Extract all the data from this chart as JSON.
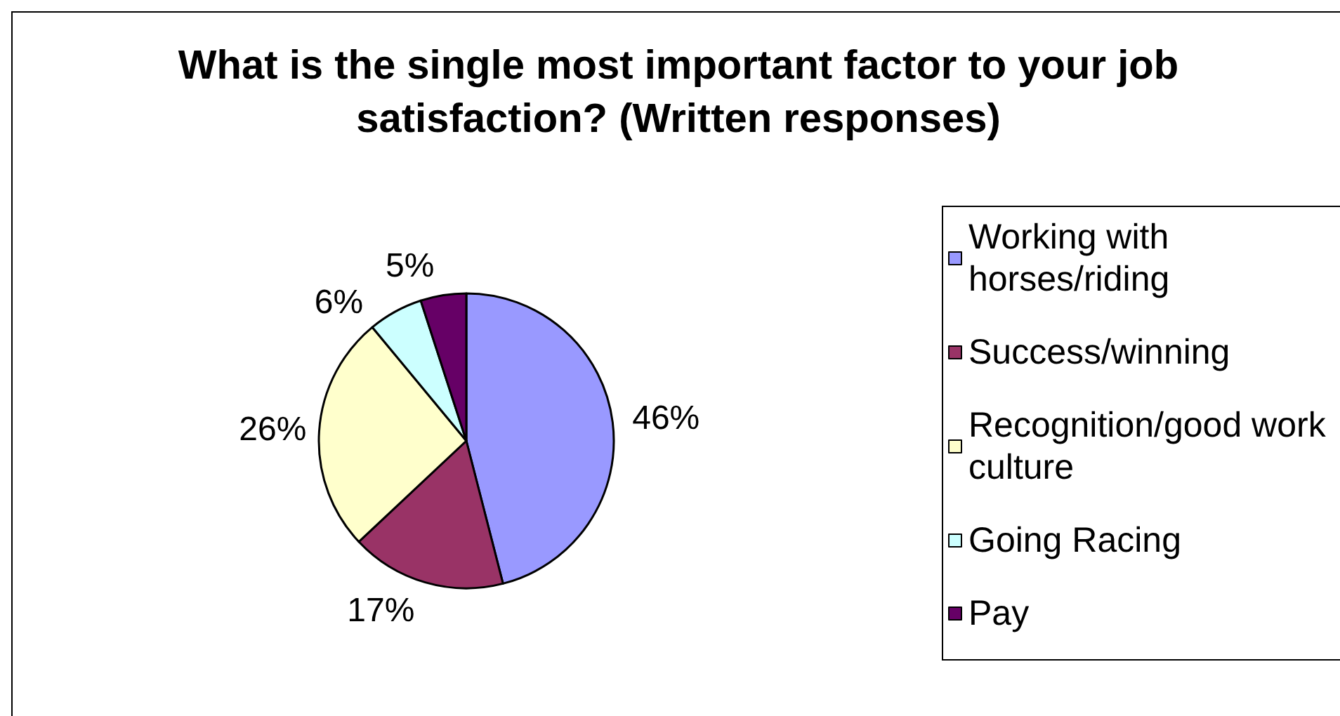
{
  "chart_data": {
    "type": "pie",
    "title": "What is the single most important factor to your job satisfaction? (Written responses)",
    "categories": [
      "Working with horses/riding",
      "Success/winning",
      "Recognition/good work culture",
      "Going Racing",
      "Pay"
    ],
    "values": [
      46,
      17,
      26,
      6,
      5
    ],
    "colors": [
      "#9999ff",
      "#993366",
      "#ffffcc",
      "#ccffff",
      "#660066"
    ],
    "value_labels": [
      "46%",
      "17%",
      "26%",
      "6%",
      "5%"
    ],
    "legend": "right"
  }
}
